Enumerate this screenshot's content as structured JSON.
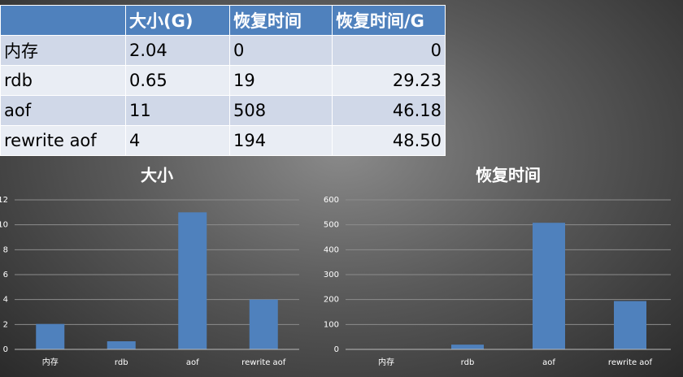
{
  "table": {
    "header": [
      "大小(G)",
      "恢复时间",
      "恢复时间/G"
    ],
    "rows": [
      [
        "内存",
        "2.04",
        "0",
        "0"
      ],
      [
        "rdb",
        "0.65",
        "19",
        "29.23"
      ],
      [
        "aof",
        "11",
        "508",
        "46.18"
      ],
      [
        "rewrite aof",
        "4",
        "194",
        "48.50"
      ]
    ]
  },
  "chart_data": [
    {
      "type": "bar",
      "title": "大小",
      "categories": [
        "内存",
        "rdb",
        "aof",
        "rewrite aof"
      ],
      "values": [
        2.04,
        0.65,
        11,
        4
      ],
      "color": "#4f81bd",
      "ylim": [
        0,
        12
      ],
      "yticks": [
        0,
        2,
        4,
        6,
        8,
        10,
        12
      ],
      "grid": true
    },
    {
      "type": "bar",
      "title": "恢复时间",
      "categories": [
        "内存",
        "rdb",
        "aof",
        "rewrite aof"
      ],
      "values": [
        0,
        19,
        508,
        194
      ],
      "color": "#4f81bd",
      "ylim": [
        0,
        600
      ],
      "yticks": [
        0,
        100,
        200,
        300,
        400,
        500,
        600
      ],
      "grid": true
    }
  ]
}
